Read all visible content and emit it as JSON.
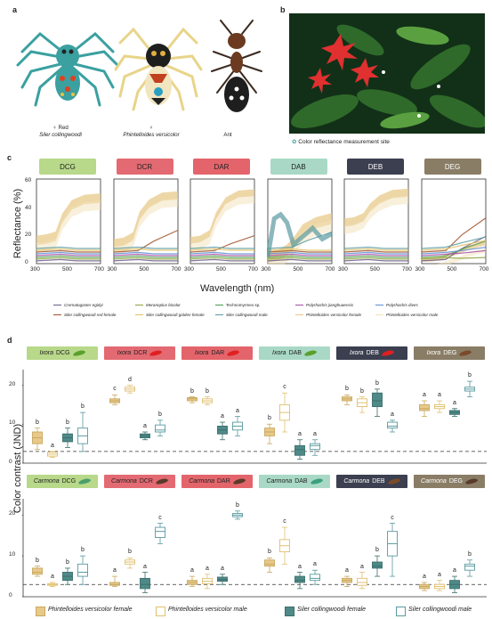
{
  "panel_labels": {
    "a": "a",
    "b": "b",
    "c": "c",
    "d": "d"
  },
  "panel_a": {
    "species": [
      {
        "sex": "♀ Red",
        "name": "Siler collingwoodi"
      },
      {
        "sex": "♀",
        "name": "Phintelloides versicolor"
      },
      {
        "sex": "",
        "name": "Ant"
      }
    ]
  },
  "panel_b": {
    "legend": "Color reflectance measurement site",
    "stars": "✿ ✿"
  },
  "panel_c": {
    "ylabel": "Reflectance (%)",
    "xlabel": "Wavelength (nm)",
    "yticks": [
      "0",
      "20",
      "40",
      "60"
    ],
    "xticks": [
      "300",
      "500",
      "700"
    ],
    "panels": [
      {
        "label": "DCG",
        "color": "#b8d88a"
      },
      {
        "label": "DCR",
        "color": "#e36a72"
      },
      {
        "label": "DAR",
        "color": "#e3656b"
      },
      {
        "label": "DAB",
        "color": "#a9d9c6"
      },
      {
        "label": "DEB",
        "color": "#3b3f4f",
        "text_color": "#ffffff"
      },
      {
        "label": "DEG",
        "color": "#8a7d66",
        "text_color": "#ffffff"
      }
    ],
    "legend": [
      {
        "label": "Crematogaster egidyi",
        "color": "#6b5b8a"
      },
      {
        "label": "Meranoplus bicolor",
        "color": "#8aa23c"
      },
      {
        "label": "Technomyrmex sp.",
        "color": "#4a9c4a"
      },
      {
        "label": "Polyrhachis jianghuaensis",
        "color": "#a64ca6"
      },
      {
        "label": "Polyrhachis dives",
        "color": "#5b8fd1"
      },
      {
        "label": "Siler collingwoodi red female",
        "color": "#a0522d"
      },
      {
        "label": "Siler collingwoodi golden female",
        "color": "#e0c060"
      },
      {
        "label": "Siler collingwoodi male",
        "color": "#5a9aa0"
      },
      {
        "label": "Phintelloides versicolor female",
        "color": "#e8c98a"
      },
      {
        "label": "Phintelloides versicolor male",
        "color": "#f1e1b8"
      }
    ]
  },
  "panel_d": {
    "ylabel": "Color contrast (JND)",
    "yticks_top": [
      "0",
      "10",
      "20"
    ],
    "yticks_bottom": [
      "0",
      "10",
      "20"
    ],
    "ixora_headers": [
      {
        "genus": "Ixora",
        "code": "DCG",
        "color": "#b8d88a",
        "leaf": "#5aa02c"
      },
      {
        "genus": "Ixora",
        "code": "DCR",
        "color": "#e36a72",
        "leaf": "#e02020"
      },
      {
        "genus": "Ixora",
        "code": "DAR",
        "color": "#e3656b",
        "leaf": "#e02020"
      },
      {
        "genus": "Ixora",
        "code": "DAB",
        "color": "#a9d9c6",
        "leaf": "#5aa02c"
      },
      {
        "genus": "Ixora",
        "code": "DEB",
        "color": "#3b3f4f",
        "leaf": "#e02020",
        "text_color": "#ffffff"
      },
      {
        "genus": "Ixora",
        "code": "DEG",
        "color": "#8a7d66",
        "leaf": "#7a4a2a",
        "text_color": "#ffffff"
      }
    ],
    "carmona_headers": [
      {
        "genus": "Carmona",
        "code": "DCG",
        "color": "#b8d88a",
        "leaf": "#4aa06a"
      },
      {
        "genus": "Carmona",
        "code": "DCR",
        "color": "#e36a72",
        "leaf": "#5a3a2a"
      },
      {
        "genus": "Carmona",
        "code": "DAR",
        "color": "#e3656b",
        "leaf": "#5a3a2a"
      },
      {
        "genus": "Carmona",
        "code": "DAB",
        "color": "#a9d9c6",
        "leaf": "#3aa080"
      },
      {
        "genus": "Carmona",
        "code": "DEB",
        "color": "#3b3f4f",
        "leaf": "#7a4a2a",
        "text_color": "#ffffff"
      },
      {
        "genus": "Carmona",
        "code": "DEG",
        "color": "#8a7d66",
        "leaf": "#5a3a2a",
        "text_color": "#ffffff"
      }
    ],
    "ixora_boxes": [
      [
        {
          "med": 6.5,
          "q1": 5,
          "q3": 8,
          "lo": 3.5,
          "hi": 9,
          "l": "b"
        },
        {
          "med": 2.3,
          "q1": 1.8,
          "q3": 2.8,
          "lo": 1.5,
          "hi": 3,
          "l": "a"
        },
        {
          "med": 6.5,
          "q1": 5.5,
          "q3": 7.5,
          "lo": 4,
          "hi": 9,
          "l": "b"
        },
        {
          "med": 7,
          "q1": 5,
          "q3": 9,
          "lo": 3,
          "hi": 13,
          "l": "b"
        }
      ],
      [
        {
          "med": 16,
          "q1": 15.5,
          "q3": 16.5,
          "lo": 15,
          "hi": 17.5,
          "l": "c"
        },
        {
          "med": 19,
          "q1": 18.5,
          "q3": 19.5,
          "lo": 18,
          "hi": 20,
          "l": "d"
        },
        {
          "med": 7,
          "q1": 6.5,
          "q3": 7.5,
          "lo": 6,
          "hi": 8,
          "l": "a"
        },
        {
          "med": 8.5,
          "q1": 8,
          "q3": 9.8,
          "lo": 7,
          "hi": 11,
          "l": "b"
        }
      ],
      [
        {
          "med": 16.5,
          "q1": 16,
          "q3": 16.8,
          "lo": 15.5,
          "hi": 17,
          "l": "b"
        },
        {
          "med": 16,
          "q1": 15.5,
          "q3": 16.5,
          "lo": 15,
          "hi": 17,
          "l": "b"
        },
        {
          "med": 8.5,
          "q1": 7.5,
          "q3": 9.5,
          "lo": 6,
          "hi": 10.5,
          "l": "a"
        },
        {
          "med": 9.5,
          "q1": 8.5,
          "q3": 10.5,
          "lo": 7,
          "hi": 12,
          "l": "a"
        }
      ],
      [
        {
          "med": 8,
          "q1": 7,
          "q3": 9,
          "lo": 5,
          "hi": 10,
          "l": "b"
        },
        {
          "med": 13,
          "q1": 11,
          "q3": 15,
          "lo": 8,
          "hi": 18,
          "l": "c"
        },
        {
          "med": 3.5,
          "q1": 2,
          "q3": 4.5,
          "lo": 1,
          "hi": 6,
          "l": "a"
        },
        {
          "med": 4.5,
          "q1": 3.5,
          "q3": 5,
          "lo": 2,
          "hi": 6,
          "l": "a"
        }
      ],
      [
        {
          "med": 16.5,
          "q1": 16,
          "q3": 17,
          "lo": 15,
          "hi": 17.5,
          "l": "b"
        },
        {
          "med": 15.5,
          "q1": 14.5,
          "q3": 16.5,
          "lo": 13,
          "hi": 17,
          "l": "b"
        },
        {
          "med": 16,
          "q1": 14.5,
          "q3": 18,
          "lo": 12,
          "hi": 19,
          "l": "b"
        },
        {
          "med": 9.5,
          "q1": 9,
          "q3": 10.5,
          "lo": 8,
          "hi": 11,
          "l": "a"
        }
      ],
      [
        {
          "med": 14,
          "q1": 13.5,
          "q3": 15,
          "lo": 12,
          "hi": 16,
          "l": "a"
        },
        {
          "med": 14.5,
          "q1": 14,
          "q3": 15,
          "lo": 13,
          "hi": 16,
          "l": "a"
        },
        {
          "med": 13,
          "q1": 12.5,
          "q3": 13.5,
          "lo": 12,
          "hi": 14,
          "l": "a"
        },
        {
          "med": 19,
          "q1": 18.5,
          "q3": 19.5,
          "lo": 17,
          "hi": 21,
          "l": "b"
        }
      ]
    ],
    "carmona_boxes": [
      [
        {
          "med": 6,
          "q1": 5.5,
          "q3": 7,
          "lo": 5,
          "hi": 7.5,
          "l": "b"
        },
        {
          "med": 3,
          "q1": 2.8,
          "q3": 3.2,
          "lo": 2.5,
          "hi": 3.5,
          "l": "a"
        },
        {
          "med": 5,
          "q1": 4,
          "q3": 6,
          "lo": 3,
          "hi": 7,
          "l": "b"
        },
        {
          "med": 6,
          "q1": 5,
          "q3": 8,
          "lo": 3,
          "hi": 10,
          "l": "b"
        }
      ],
      [
        {
          "med": 3,
          "q1": 2.8,
          "q3": 3.5,
          "lo": 2.5,
          "hi": 5,
          "l": "a"
        },
        {
          "med": 8.5,
          "q1": 8,
          "q3": 9,
          "lo": 7,
          "hi": 9.5,
          "l": "b"
        },
        {
          "med": 3,
          "q1": 2,
          "q3": 4.5,
          "lo": 1,
          "hi": 6,
          "l": "a"
        },
        {
          "med": 16,
          "q1": 14.5,
          "q3": 17,
          "lo": 13,
          "hi": 18,
          "l": "c"
        }
      ],
      [
        {
          "med": 3.5,
          "q1": 3,
          "q3": 4,
          "lo": 2.5,
          "hi": 5,
          "l": "a"
        },
        {
          "med": 3.8,
          "q1": 3.2,
          "q3": 4.5,
          "lo": 2,
          "hi": 5.5,
          "l": "a"
        },
        {
          "med": 4.2,
          "q1": 3.8,
          "q3": 4.8,
          "lo": 3,
          "hi": 5.5,
          "l": "a"
        },
        {
          "med": 20,
          "q1": 19.6,
          "q3": 20.4,
          "lo": 19,
          "hi": 21,
          "l": "b"
        }
      ],
      [
        {
          "med": 8,
          "q1": 7.5,
          "q3": 9,
          "lo": 6,
          "hi": 9.5,
          "l": "b"
        },
        {
          "med": 12.5,
          "q1": 11,
          "q3": 14,
          "lo": 8,
          "hi": 17,
          "l": "c"
        },
        {
          "med": 4,
          "q1": 3.5,
          "q3": 5,
          "lo": 2,
          "hi": 6,
          "l": "a"
        },
        {
          "med": 4.5,
          "q1": 4,
          "q3": 5.5,
          "lo": 3,
          "hi": 6.5,
          "l": "a"
        }
      ],
      [
        {
          "med": 4,
          "q1": 3.5,
          "q3": 4.5,
          "lo": 2.5,
          "hi": 5,
          "l": "a"
        },
        {
          "med": 3.5,
          "q1": 2.8,
          "q3": 4.5,
          "lo": 2,
          "hi": 6,
          "l": "a"
        },
        {
          "med": 7.5,
          "q1": 7,
          "q3": 8.5,
          "lo": 5,
          "hi": 10,
          "l": "b"
        },
        {
          "med": 13,
          "q1": 10,
          "q3": 16,
          "lo": 5,
          "hi": 18,
          "l": "c"
        }
      ],
      [
        {
          "med": 2.5,
          "q1": 2,
          "q3": 3,
          "lo": 1.5,
          "hi": 3.5,
          "l": "a"
        },
        {
          "med": 2.5,
          "q1": 2,
          "q3": 3,
          "lo": 1.5,
          "hi": 4,
          "l": "a"
        },
        {
          "med": 3,
          "q1": 2,
          "q3": 4,
          "lo": 1,
          "hi": 5,
          "l": "a"
        },
        {
          "med": 7.5,
          "q1": 6.5,
          "q3": 8,
          "lo": 5,
          "hi": 9,
          "l": "b"
        }
      ]
    ],
    "legend": [
      {
        "label": "Phintelloides versicolor female",
        "fill": "#e8c98a",
        "stroke": "#c8a860"
      },
      {
        "label": "Phintelloides versicolor male",
        "fill": "#ffffff",
        "stroke": "#e0c070"
      },
      {
        "label": "Siler collingwoodi female",
        "fill": "#4f8a88",
        "stroke": "#3a6f6d"
      },
      {
        "label": "Siler collingwoodi male",
        "fill": "#ffffff",
        "stroke": "#5a9aa0"
      }
    ]
  }
}
